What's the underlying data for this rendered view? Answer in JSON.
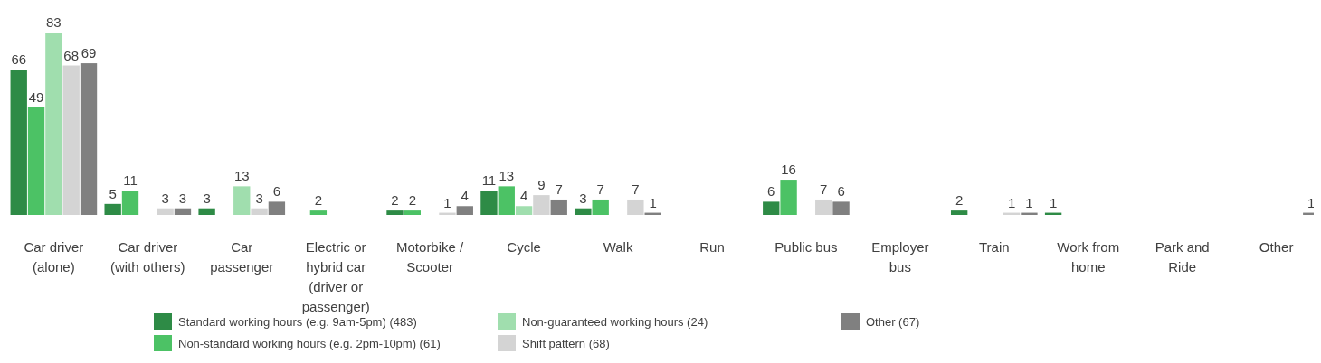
{
  "chart_data": {
    "type": "bar",
    "categories": [
      "Car driver (alone)",
      "Car driver (with others)",
      "Car passenger",
      "Electric or hybrid car (driver or passenger)",
      "Motorbike / Scooter",
      "Cycle",
      "Walk",
      "Run",
      "Public bus",
      "Employer bus",
      "Train",
      "Work from home",
      "Park and Ride",
      "Other"
    ],
    "series": [
      {
        "name": "Standard working hours (e.g. 9am-5pm) (483)",
        "color": "#2e8b46",
        "values": [
          66,
          5,
          3,
          null,
          2,
          11,
          3,
          null,
          6,
          null,
          2,
          1,
          null,
          null
        ]
      },
      {
        "name": "Non-standard working hours (e.g. 2pm-10pm) (61)",
        "color": "#4cc265",
        "values": [
          49,
          11,
          null,
          2,
          2,
          13,
          7,
          null,
          16,
          null,
          null,
          null,
          null,
          null
        ]
      },
      {
        "name": "Non-guaranteed working hours (24)",
        "color": "#a0deae",
        "values": [
          83,
          null,
          13,
          null,
          null,
          4,
          null,
          null,
          null,
          null,
          null,
          null,
          null,
          null
        ]
      },
      {
        "name": "Shift pattern (68)",
        "color": "#d4d4d4",
        "values": [
          68,
          3,
          3,
          null,
          1,
          9,
          7,
          null,
          7,
          null,
          1,
          null,
          null,
          null
        ]
      },
      {
        "name": "Other (67)",
        "color": "#808080",
        "values": [
          69,
          3,
          6,
          null,
          4,
          7,
          1,
          null,
          6,
          null,
          1,
          null,
          null,
          1
        ]
      }
    ],
    "data_labels": true,
    "legend": "bottom"
  }
}
